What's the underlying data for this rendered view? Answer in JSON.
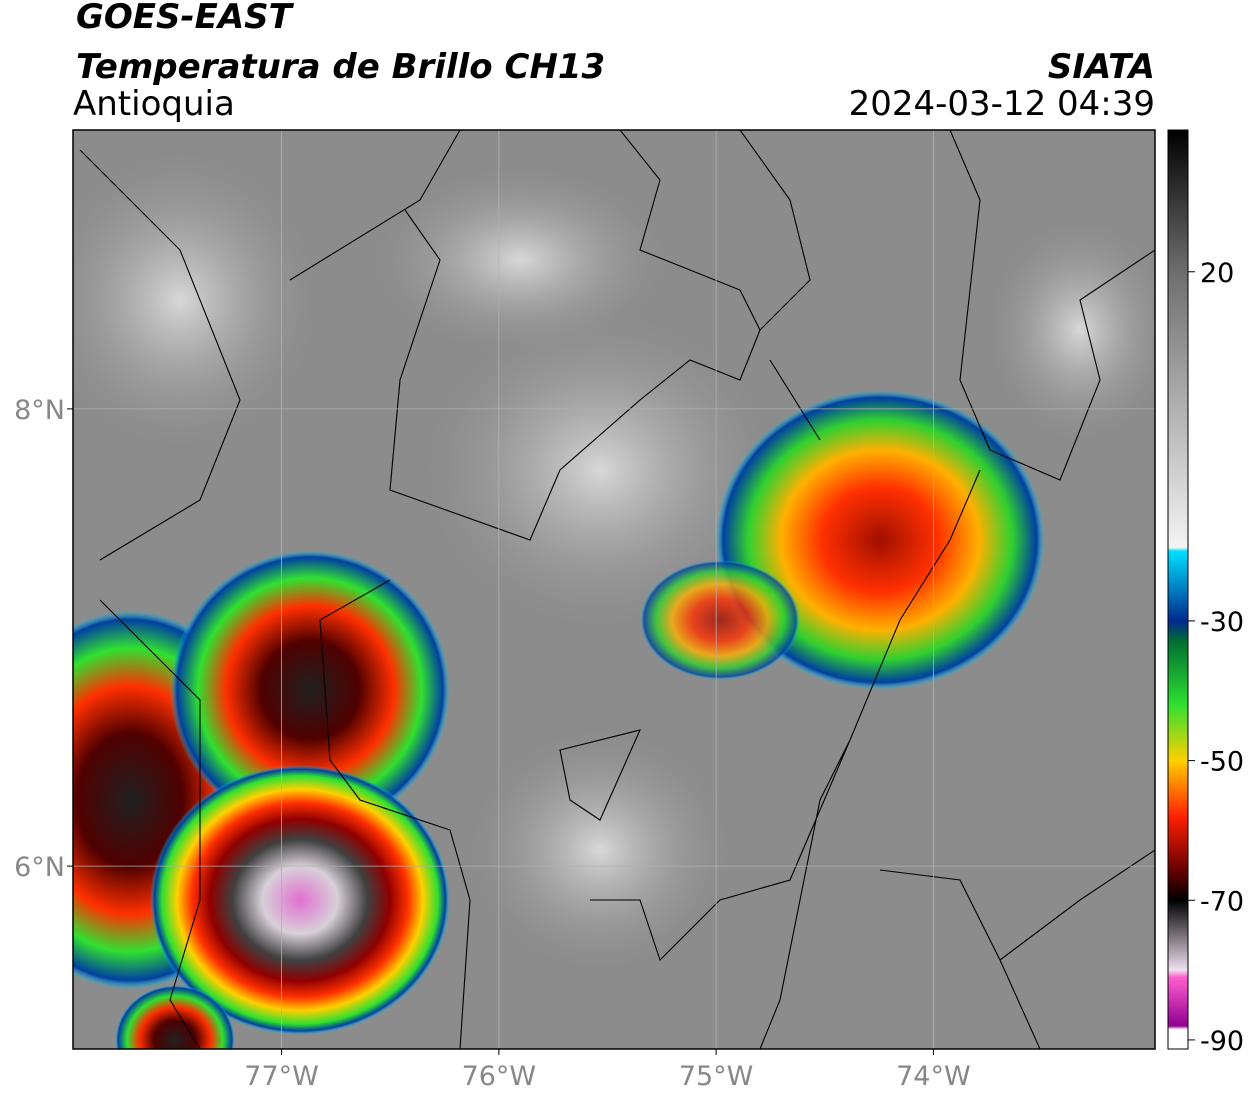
{
  "header": {
    "title": "GOES-EAST",
    "subtitle": "Temperatura de Brillo CH13",
    "region": "Antioquia",
    "source": "SIATA",
    "datetime": "2024-03-12 04:39"
  },
  "map": {
    "xlim": [
      -77.96,
      -72.98
    ],
    "ylim": [
      5.2,
      9.22
    ],
    "xticks": [
      {
        "value": -77,
        "label": "77°W"
      },
      {
        "value": -76,
        "label": "76°W"
      },
      {
        "value": -75,
        "label": "75°W"
      },
      {
        "value": -74,
        "label": "74°W"
      }
    ],
    "yticks": [
      {
        "value": 8,
        "label": "8°N"
      },
      {
        "value": 6,
        "label": "6°N"
      }
    ],
    "grid": true
  },
  "colorbar": {
    "lim": [
      -91.3,
      40.3
    ],
    "ticks": [
      20,
      -30,
      -50,
      -70,
      -90
    ],
    "colormap": [
      {
        "value": 40.3,
        "color": "#000000"
      },
      {
        "value": 20,
        "color": "#6e6e6e"
      },
      {
        "value": -19.5,
        "color": "#f4f4f4"
      },
      {
        "value": -20,
        "color": "#00e0ff"
      },
      {
        "value": -30,
        "color": "#002a90"
      },
      {
        "value": -33,
        "color": "#007030"
      },
      {
        "value": -42,
        "color": "#30e030"
      },
      {
        "value": -50,
        "color": "#ffd000"
      },
      {
        "value": -58,
        "color": "#ff2000"
      },
      {
        "value": -66,
        "color": "#600000"
      },
      {
        "value": -70,
        "color": "#000000"
      },
      {
        "value": -80,
        "color": "#f0e0f0"
      },
      {
        "value": -81,
        "color": "#ff60d0"
      },
      {
        "value": -88,
        "color": "#900090"
      },
      {
        "value": -88.5,
        "color": "#ffffff"
      },
      {
        "value": -91.3,
        "color": "#ffffff"
      }
    ]
  }
}
